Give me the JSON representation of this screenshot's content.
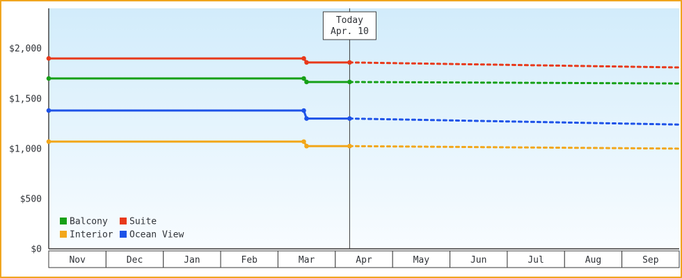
{
  "theme": {
    "frame_border": "#f0a51f",
    "plot_bg_top": "#d2ecfb",
    "plot_bg_bottom": "#f8fcff",
    "axis_color": "#3a3a3a",
    "text_color": "#2f3237",
    "month_cell_fill": "#ffffff",
    "today_box_fill": "#ffffff"
  },
  "chart_data": {
    "type": "line",
    "title": "",
    "line_styles": {
      "history": "solid",
      "forecast": "dotted"
    },
    "x_axis": {
      "categories": [
        "Nov",
        "Dec",
        "Jan",
        "Feb",
        "Mar",
        "Apr",
        "May",
        "Jun",
        "Jul",
        "Aug",
        "Sep"
      ]
    },
    "y_axis": {
      "range": [
        0,
        2400
      ],
      "ticks": [
        {
          "value": 2000,
          "label": "$2,000"
        },
        {
          "value": 1500,
          "label": "$1,500"
        },
        {
          "value": 1000,
          "label": "$1,000"
        },
        {
          "value": 500,
          "label": "$500"
        },
        {
          "value": 0,
          "label": "$0"
        }
      ]
    },
    "today": {
      "month_position": 5.25,
      "label_line1": "Today",
      "label_line2": "Apr. 10"
    },
    "series": [
      {
        "name": "Suite",
        "color": "#e8391a",
        "history_value": 1900,
        "drop_month_position": 4.45,
        "current_value": 1860,
        "forecast_end_value": 1810
      },
      {
        "name": "Balcony",
        "color": "#16a016",
        "history_value": 1700,
        "drop_month_position": 4.45,
        "current_value": 1665,
        "forecast_end_value": 1650
      },
      {
        "name": "Ocean View",
        "color": "#1d52e8",
        "history_value": 1380,
        "drop_month_position": 4.45,
        "current_value": 1300,
        "forecast_end_value": 1240
      },
      {
        "name": "Interior",
        "color": "#f2a71b",
        "history_value": 1070,
        "drop_month_position": 4.45,
        "current_value": 1025,
        "forecast_end_value": 1000
      }
    ],
    "legend": {
      "position": "bottom-left",
      "items": [
        {
          "label": "Balcony",
          "color": "#16a016"
        },
        {
          "label": "Suite",
          "color": "#e8391a"
        },
        {
          "label": "Interior",
          "color": "#f2a71b"
        },
        {
          "label": "Ocean View",
          "color": "#1d52e8"
        }
      ]
    }
  }
}
